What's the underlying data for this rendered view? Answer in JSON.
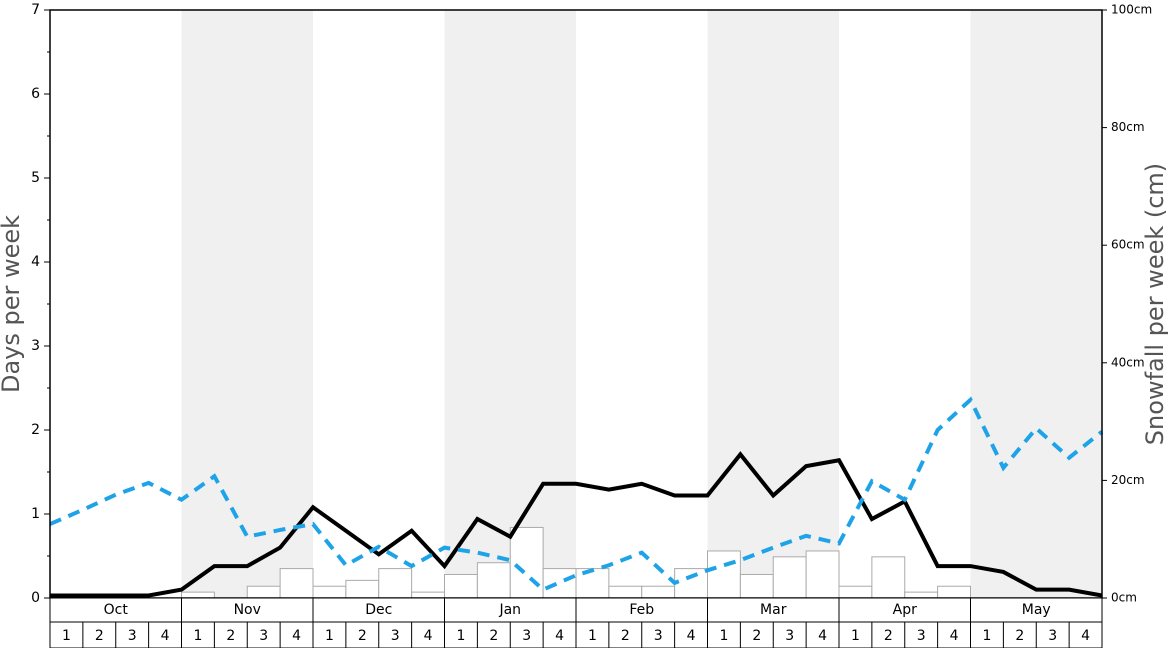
{
  "chart_data": {
    "type": "bar-line",
    "ylabel": "Days per week",
    "y2label": "Snowfall per week (cm)",
    "months": [
      "Oct",
      "Nov",
      "Dec",
      "Jan",
      "Feb",
      "Mar",
      "Apr",
      "May"
    ],
    "shaded_months": [
      false,
      true,
      false,
      true,
      false,
      true,
      false,
      true
    ],
    "categories": [
      "1",
      "2",
      "3",
      "4",
      "1",
      "2",
      "3",
      "4",
      "1",
      "2",
      "3",
      "4",
      "1",
      "2",
      "3",
      "4",
      "1",
      "2",
      "3",
      "4",
      "1",
      "2",
      "3",
      "4",
      "1",
      "2",
      "3",
      "4",
      "1",
      "2",
      "3",
      "4"
    ],
    "xlim": [
      0,
      32
    ],
    "x": [
      0,
      1,
      2,
      3,
      4,
      5,
      6,
      7,
      8,
      9,
      10,
      11,
      12,
      13,
      14,
      15,
      16,
      17,
      18,
      19,
      20,
      21,
      22,
      23,
      24,
      25,
      26,
      27,
      28,
      29,
      30,
      31,
      32
    ],
    "ylim": [
      0,
      7
    ],
    "yticks": [
      0,
      1,
      2,
      3,
      4,
      5,
      6,
      7
    ],
    "y2lim": [
      0,
      100
    ],
    "y2ticks": [
      {
        "value": 0,
        "label": "0cm"
      },
      {
        "value": 20,
        "label": "20cm"
      },
      {
        "value": 40,
        "label": "40cm"
      },
      {
        "value": 60,
        "label": "60cm"
      },
      {
        "value": 80,
        "label": "80cm"
      },
      {
        "value": 100,
        "label": "100cm"
      }
    ],
    "bars": {
      "color": "#ffffff",
      "axis": "y2",
      "values": [
        0,
        0,
        0,
        0,
        1,
        0,
        2,
        5,
        2,
        3,
        5,
        1,
        4,
        6,
        12,
        5,
        5,
        2,
        2,
        5,
        8,
        4,
        7,
        8,
        2,
        7,
        1,
        2,
        0,
        0,
        0,
        0
      ]
    },
    "series": [
      {
        "color": "#000000",
        "style": "solid",
        "values": [
          0.03,
          0.03,
          0.03,
          0.03,
          0.1,
          0.38,
          0.38,
          0.6,
          1.08,
          0.8,
          0.52,
          0.8,
          0.38,
          0.94,
          0.73,
          1.36,
          1.36,
          1.29,
          1.36,
          1.22,
          1.22,
          1.71,
          1.22,
          1.57,
          1.64,
          0.94,
          1.15,
          0.38,
          0.38,
          0.31,
          0.1,
          0.1,
          0.03
        ]
      },
      {
        "color": "#1fa3e8",
        "style": "dashed",
        "values": [
          0.88,
          1.05,
          1.23,
          1.37,
          1.17,
          1.45,
          0.73,
          0.81,
          0.88,
          0.39,
          0.61,
          0.38,
          0.6,
          0.54,
          0.45,
          0.1,
          0.27,
          0.39,
          0.54,
          0.18,
          0.33,
          0.45,
          0.6,
          0.74,
          0.65,
          1.39,
          1.17,
          2.0,
          2.36,
          1.55,
          2.02,
          1.67,
          1.98
        ]
      }
    ]
  }
}
